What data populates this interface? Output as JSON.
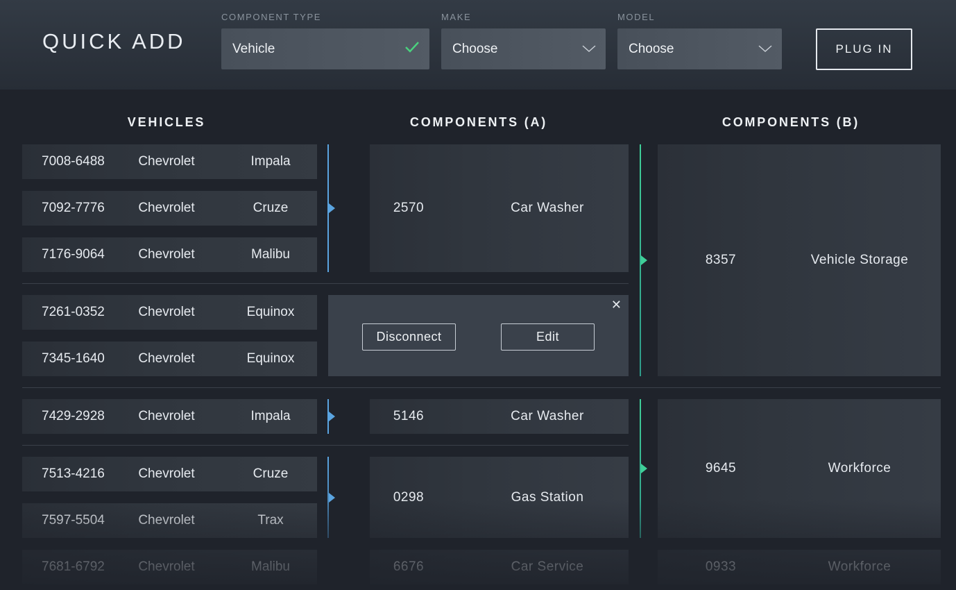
{
  "header": {
    "title": "QUICK ADD",
    "component_type": {
      "label": "COMPONENT TYPE",
      "value": "Vehicle",
      "icon": "check-icon"
    },
    "make": {
      "label": "MAKE",
      "value": "Choose",
      "icon": "chevron-down-icon"
    },
    "model": {
      "label": "MODEL",
      "value": "Choose",
      "icon": "chevron-down-icon"
    },
    "plug_in_label": "PLUG IN"
  },
  "columns": {
    "vehicles": "VEHICLES",
    "components_a": "COMPONENTS (A)",
    "components_b": "COMPONENTS (B)"
  },
  "vehicles": [
    {
      "id": "7008-6488",
      "make": "Chevrolet",
      "model": "Impala"
    },
    {
      "id": "7092-7776",
      "make": "Chevrolet",
      "model": "Cruze"
    },
    {
      "id": "7176-9064",
      "make": "Chevrolet",
      "model": "Malibu"
    },
    {
      "id": "7261-0352",
      "make": "Chevrolet",
      "model": "Equinox"
    },
    {
      "id": "7345-1640",
      "make": "Chevrolet",
      "model": "Equinox"
    },
    {
      "id": "7429-2928",
      "make": "Chevrolet",
      "model": "Impala"
    },
    {
      "id": "7513-4216",
      "make": "Chevrolet",
      "model": "Cruze"
    },
    {
      "id": "7597-5504",
      "make": "Chevrolet",
      "model": "Trax"
    },
    {
      "id": "7681-6792",
      "make": "Chevrolet",
      "model": "Malibu"
    }
  ],
  "components_a": [
    {
      "id": "2570",
      "name": "Car Washer"
    },
    {
      "id": "5146",
      "name": "Car Washer"
    },
    {
      "id": "0298",
      "name": "Gas Station"
    },
    {
      "id": "6676",
      "name": "Car Service"
    }
  ],
  "components_b": [
    {
      "id": "8357",
      "name": "Vehicle Storage"
    },
    {
      "id": "9645",
      "name": "Workforce"
    },
    {
      "id": "0933",
      "name": "Workforce"
    }
  ],
  "popup": {
    "disconnect_label": "Disconnect",
    "edit_label": "Edit",
    "close_icon": "close-icon"
  },
  "colors": {
    "accent_blue": "#5aa4e0",
    "accent_green": "#3fcf98",
    "check_green": "#4ad27e"
  }
}
